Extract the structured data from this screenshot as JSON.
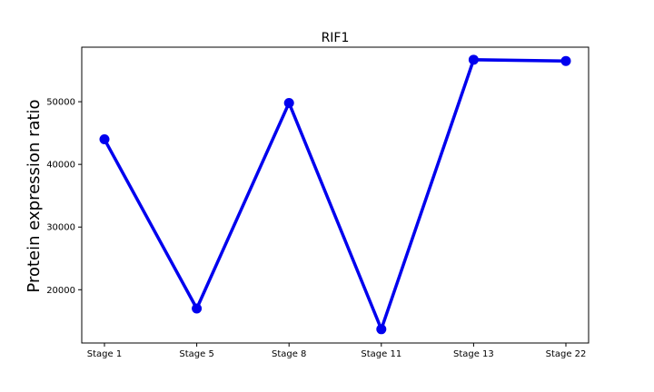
{
  "chart_data": {
    "type": "line",
    "title": "RIF1",
    "xlabel": "",
    "ylabel": "Protein expression ratio",
    "categories": [
      "Stage 1",
      "Stage 5",
      "Stage 8",
      "Stage 11",
      "Stage 13",
      "Stage 22"
    ],
    "series": [
      {
        "values": [
          44000,
          17000,
          49800,
          13700,
          56700,
          56500
        ],
        "color": "#0000ee"
      }
    ],
    "ylim": [
      11500,
      58700
    ],
    "yticks": [
      20000,
      30000,
      40000,
      50000
    ],
    "ytick_labels": [
      "20000",
      "30000",
      "40000",
      "50000"
    ],
    "grid": false,
    "legend": "none"
  }
}
